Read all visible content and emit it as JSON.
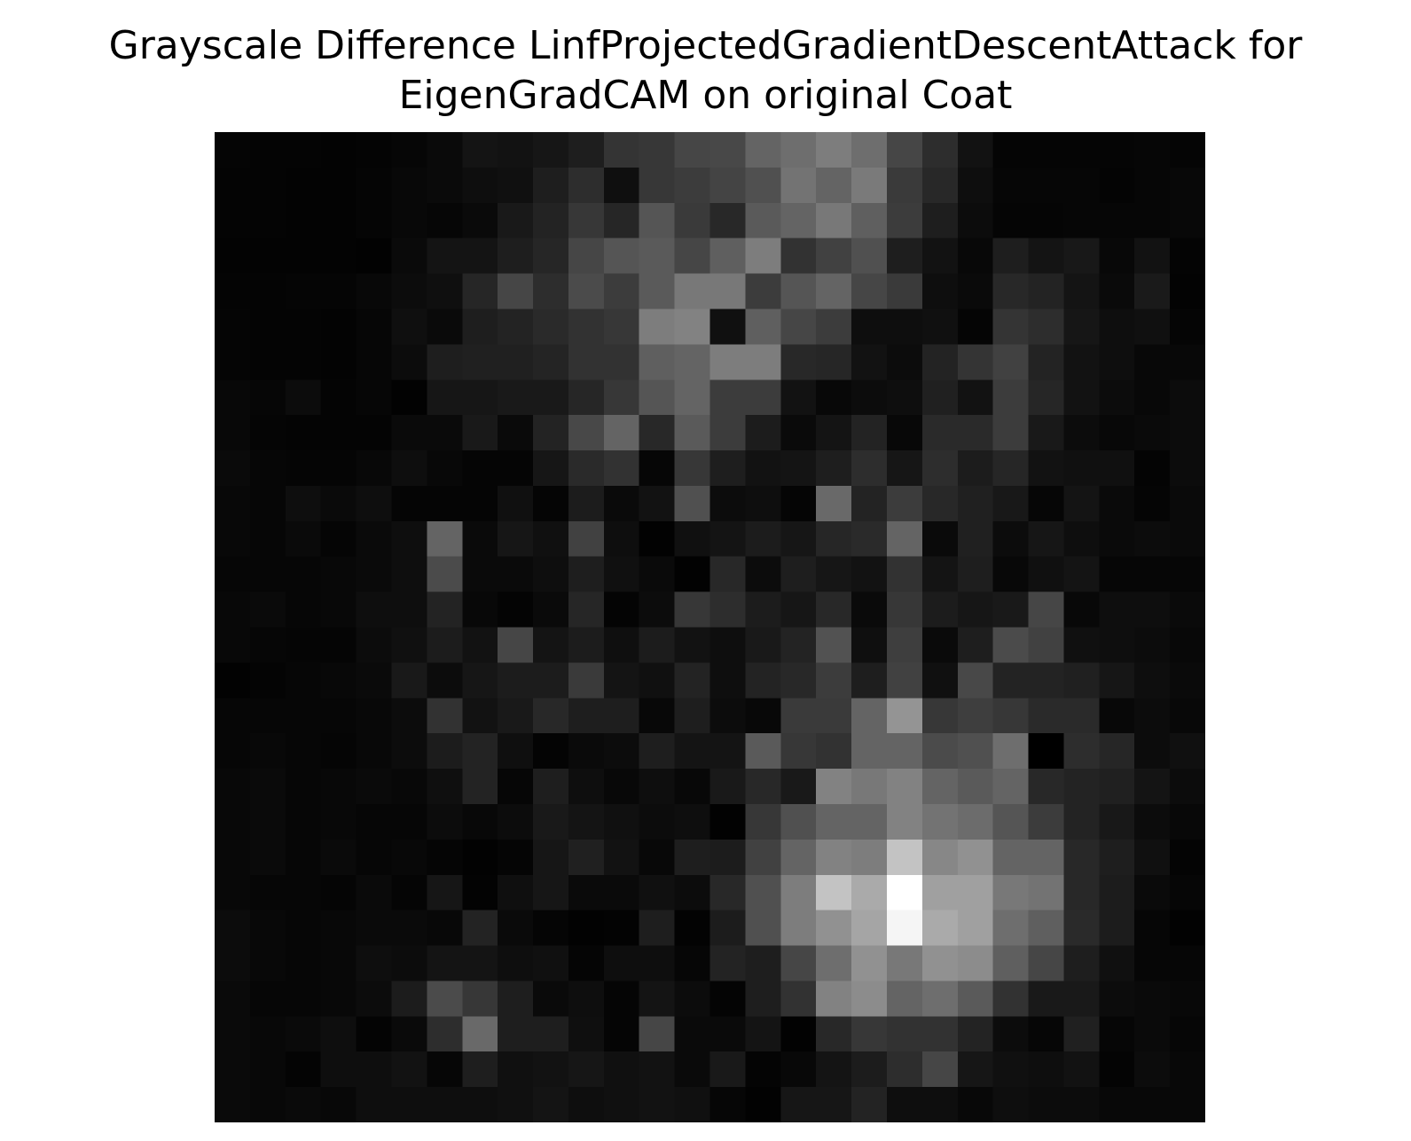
{
  "chart_data": {
    "type": "heatmap",
    "title": [
      "Grayscale Difference LinfProjectedGradientDescentAttack for",
      "EigenGradCAM on original Coat"
    ],
    "colormap": "gray",
    "vmin": 0,
    "vmax": 255,
    "axes_visible": false,
    "rows": 28,
    "cols": 28,
    "values": [
      [
        5,
        4,
        4,
        3,
        4,
        6,
        10,
        20,
        18,
        22,
        30,
        52,
        55,
        70,
        72,
        100,
        110,
        125,
        110,
        70,
        45,
        18,
        5,
        5,
        5,
        5,
        6,
        5
      ],
      [
        4,
        4,
        3,
        3,
        5,
        8,
        10,
        14,
        16,
        30,
        45,
        15,
        55,
        60,
        68,
        80,
        115,
        100,
        122,
        58,
        40,
        14,
        6,
        6,
        6,
        4,
        6,
        8
      ],
      [
        4,
        4,
        3,
        3,
        5,
        8,
        6,
        10,
        25,
        35,
        55,
        38,
        85,
        58,
        40,
        90,
        100,
        120,
        95,
        60,
        30,
        12,
        5,
        5,
        6,
        6,
        6,
        8
      ],
      [
        3,
        3,
        3,
        3,
        2,
        10,
        20,
        20,
        30,
        38,
        70,
        85,
        90,
        70,
        95,
        125,
        50,
        65,
        80,
        30,
        18,
        8,
        30,
        20,
        24,
        8,
        18,
        4
      ],
      [
        4,
        4,
        5,
        5,
        8,
        12,
        15,
        38,
        70,
        45,
        75,
        60,
        90,
        120,
        120,
        60,
        85,
        100,
        70,
        58,
        14,
        10,
        40,
        35,
        20,
        10,
        26,
        3
      ],
      [
        5,
        4,
        4,
        3,
        6,
        15,
        10,
        30,
        35,
        42,
        50,
        55,
        125,
        130,
        16,
        95,
        70,
        60,
        14,
        14,
        16,
        5,
        52,
        45,
        22,
        14,
        16,
        5
      ],
      [
        5,
        4,
        4,
        3,
        6,
        12,
        30,
        32,
        32,
        36,
        50,
        50,
        95,
        100,
        125,
        125,
        40,
        38,
        18,
        12,
        35,
        52,
        65,
        35,
        18,
        14,
        8,
        8
      ],
      [
        8,
        6,
        12,
        4,
        6,
        2,
        22,
        22,
        25,
        25,
        38,
        55,
        85,
        100,
        60,
        60,
        18,
        8,
        12,
        14,
        32,
        18,
        60,
        38,
        18,
        12,
        8,
        12
      ],
      [
        8,
        5,
        4,
        4,
        4,
        10,
        10,
        25,
        10,
        35,
        72,
        100,
        40,
        90,
        60,
        28,
        10,
        20,
        35,
        8,
        42,
        42,
        60,
        25,
        12,
        8,
        10,
        12
      ],
      [
        10,
        6,
        5,
        5,
        8,
        14,
        8,
        5,
        5,
        22,
        42,
        50,
        6,
        55,
        30,
        18,
        20,
        30,
        45,
        22,
        45,
        28,
        38,
        18,
        16,
        16,
        4,
        12
      ],
      [
        8,
        6,
        14,
        10,
        14,
        5,
        5,
        5,
        16,
        5,
        28,
        10,
        18,
        80,
        12,
        14,
        5,
        105,
        35,
        60,
        40,
        32,
        24,
        6,
        20,
        10,
        5,
        10
      ],
      [
        8,
        6,
        10,
        5,
        10,
        14,
        100,
        10,
        22,
        16,
        65,
        14,
        2,
        16,
        20,
        28,
        22,
        38,
        42,
        100,
        10,
        32,
        12,
        22,
        14,
        10,
        12,
        10
      ],
      [
        6,
        6,
        6,
        8,
        10,
        14,
        75,
        10,
        10,
        14,
        30,
        16,
        10,
        2,
        40,
        12,
        30,
        22,
        18,
        50,
        20,
        30,
        8,
        16,
        20,
        6,
        6,
        6
      ],
      [
        8,
        10,
        6,
        8,
        14,
        14,
        35,
        8,
        4,
        10,
        38,
        4,
        12,
        55,
        45,
        28,
        22,
        40,
        10,
        55,
        28,
        22,
        25,
        70,
        8,
        14,
        14,
        10
      ],
      [
        8,
        6,
        5,
        5,
        12,
        16,
        28,
        18,
        70,
        20,
        28,
        15,
        28,
        18,
        14,
        25,
        35,
        82,
        15,
        62,
        10,
        30,
        75,
        65,
        16,
        14,
        12,
        8
      ],
      [
        2,
        4,
        6,
        8,
        10,
        25,
        12,
        22,
        28,
        28,
        58,
        20,
        16,
        35,
        14,
        35,
        40,
        60,
        30,
        65,
        16,
        72,
        35,
        35,
        32,
        22,
        14,
        10
      ],
      [
        6,
        6,
        6,
        6,
        8,
        12,
        50,
        18,
        25,
        40,
        30,
        30,
        8,
        30,
        12,
        8,
        58,
        58,
        100,
        148,
        55,
        62,
        55,
        42,
        42,
        8,
        12,
        8
      ],
      [
        6,
        8,
        6,
        5,
        8,
        12,
        28,
        35,
        15,
        4,
        10,
        12,
        30,
        20,
        20,
        90,
        55,
        50,
        100,
        100,
        75,
        80,
        110,
        0,
        45,
        38,
        12,
        16
      ],
      [
        8,
        10,
        6,
        8,
        10,
        8,
        15,
        35,
        6,
        30,
        14,
        8,
        14,
        8,
        25,
        40,
        25,
        130,
        120,
        130,
        100,
        90,
        100,
        40,
        35,
        32,
        20,
        12
      ],
      [
        8,
        10,
        6,
        8,
        6,
        6,
        12,
        8,
        12,
        25,
        20,
        16,
        12,
        14,
        2,
        55,
        80,
        100,
        100,
        130,
        115,
        108,
        85,
        60,
        35,
        24,
        12,
        8
      ],
      [
        8,
        10,
        6,
        10,
        6,
        8,
        5,
        2,
        5,
        22,
        32,
        18,
        8,
        30,
        28,
        65,
        100,
        130,
        125,
        195,
        135,
        145,
        100,
        100,
        40,
        30,
        16,
        4
      ],
      [
        8,
        6,
        6,
        5,
        10,
        5,
        22,
        3,
        15,
        22,
        10,
        10,
        16,
        12,
        40,
        80,
        125,
        195,
        170,
        255,
        160,
        160,
        120,
        115,
        40,
        28,
        10,
        6
      ],
      [
        12,
        8,
        6,
        8,
        10,
        10,
        8,
        35,
        10,
        5,
        2,
        3,
        30,
        3,
        28,
        80,
        125,
        145,
        165,
        245,
        170,
        160,
        110,
        95,
        42,
        28,
        6,
        2
      ],
      [
        12,
        8,
        6,
        8,
        14,
        12,
        20,
        20,
        14,
        16,
        5,
        14,
        14,
        6,
        35,
        30,
        70,
        110,
        145,
        120,
        145,
        140,
        95,
        70,
        30,
        16,
        6,
        6
      ],
      [
        10,
        6,
        6,
        8,
        12,
        28,
        75,
        55,
        30,
        10,
        14,
        5,
        20,
        12,
        4,
        30,
        50,
        130,
        140,
        100,
        110,
        90,
        50,
        25,
        25,
        12,
        10,
        8
      ],
      [
        10,
        8,
        10,
        14,
        4,
        10,
        45,
        105,
        30,
        30,
        15,
        5,
        70,
        10,
        10,
        20,
        2,
        40,
        55,
        50,
        50,
        35,
        12,
        6,
        32,
        6,
        10,
        6
      ],
      [
        10,
        8,
        4,
        14,
        14,
        18,
        6,
        30,
        16,
        18,
        22,
        16,
        18,
        10,
        25,
        4,
        8,
        20,
        28,
        45,
        70,
        22,
        16,
        14,
        18,
        4,
        12,
        8
      ],
      [
        10,
        8,
        10,
        8,
        14,
        14,
        14,
        14,
        16,
        20,
        14,
        16,
        18,
        16,
        6,
        2,
        22,
        22,
        35,
        14,
        14,
        8,
        14,
        12,
        12,
        8,
        8,
        8
      ]
    ]
  }
}
